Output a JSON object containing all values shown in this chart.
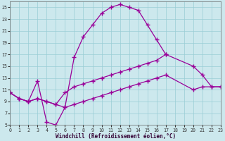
{
  "bg_color": "#cce8ed",
  "grid_color": "#99cdd6",
  "line_color": "#990099",
  "xlabel": "Windchill (Refroidissement éolien,°C)",
  "xlim": [
    0,
    23
  ],
  "ylim": [
    5,
    26
  ],
  "yticks": [
    5,
    7,
    9,
    11,
    13,
    15,
    17,
    19,
    21,
    23,
    25
  ],
  "xticks": [
    0,
    1,
    2,
    3,
    4,
    5,
    6,
    7,
    8,
    9,
    10,
    11,
    12,
    13,
    14,
    15,
    16,
    17,
    18,
    19,
    20,
    21,
    22,
    23
  ],
  "curve1_x": [
    0,
    1,
    2,
    3,
    4,
    5,
    6,
    7,
    8,
    9,
    10,
    11,
    12,
    13,
    14,
    15,
    16,
    17
  ],
  "curve1_y": [
    10.5,
    9.5,
    9.0,
    12.5,
    5.5,
    5.0,
    8.0,
    16.5,
    20.0,
    22.0,
    24.0,
    25.0,
    25.5,
    25.0,
    24.5,
    22.0,
    19.5,
    17.0
  ],
  "curve2_x": [
    0,
    1,
    2,
    3,
    4,
    5,
    6,
    7,
    8,
    9,
    10,
    11,
    12,
    13,
    14,
    15,
    16,
    17,
    20,
    21,
    22,
    23
  ],
  "curve2_y": [
    10.5,
    9.5,
    9.0,
    9.5,
    9.0,
    8.5,
    10.5,
    11.5,
    12.0,
    12.5,
    13.0,
    13.5,
    14.0,
    14.5,
    15.0,
    15.5,
    16.0,
    17.0,
    15.0,
    13.5,
    11.5,
    11.5
  ],
  "curve3_x": [
    0,
    1,
    2,
    3,
    4,
    5,
    6,
    7,
    8,
    9,
    10,
    11,
    12,
    13,
    14,
    15,
    16,
    17,
    20,
    21,
    22,
    23
  ],
  "curve3_y": [
    10.5,
    9.5,
    9.0,
    9.5,
    9.0,
    8.5,
    8.0,
    8.5,
    9.0,
    9.5,
    10.0,
    10.5,
    11.0,
    11.5,
    12.0,
    12.5,
    13.0,
    13.5,
    11.0,
    11.5,
    11.5,
    11.5
  ]
}
